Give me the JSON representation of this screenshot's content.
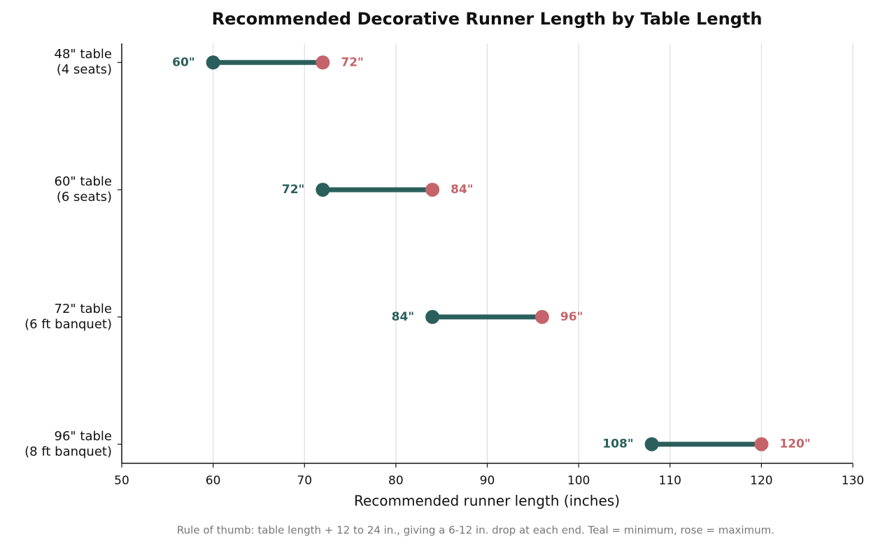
{
  "chart_data": {
    "type": "dumbbell",
    "title": "Recommended Decorative Runner Length by Table Length",
    "xlabel": "Recommended runner length (inches)",
    "note": "Rule of thumb: table length + 12 to 24 in., giving a 6-12 in. drop at each end. Teal = minimum, rose = maximum.",
    "categories": [
      "48\" table\n(4 seats)",
      "60\" table\n(6 seats)",
      "72\" table\n(6 ft banquet)",
      "96\" table\n(8 ft banquet)"
    ],
    "series": [
      {
        "color": "#2b5f5b",
        "values": [
          60,
          72,
          84,
          108
        ],
        "value_labels": [
          "60\"",
          "72\"",
          "84\"",
          "108\""
        ]
      },
      {
        "color": "#c4646a",
        "values": [
          72,
          84,
          96,
          120
        ],
        "value_labels": [
          "72\"",
          "84\"",
          "96\"",
          "120\""
        ]
      }
    ],
    "xlim": [
      50,
      130
    ],
    "xticks": [
      50,
      60,
      70,
      80,
      90,
      100,
      110,
      120,
      130
    ],
    "grid": true
  }
}
